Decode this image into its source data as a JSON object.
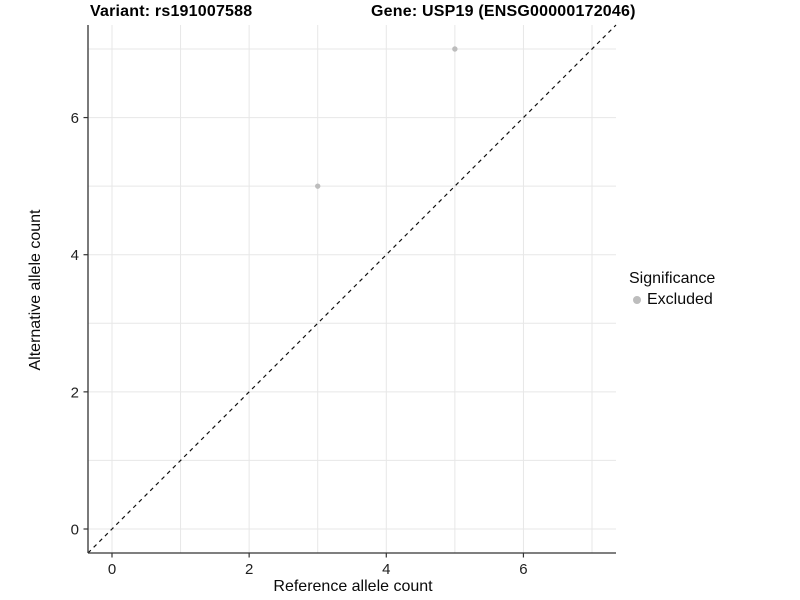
{
  "titles": {
    "variant": "Variant: rs191007588",
    "gene": "Gene: USP19 (ENSG00000172046)"
  },
  "legend": {
    "title": "Significance",
    "position": "right",
    "items": [
      {
        "label": "Excluded",
        "color": "#bdbdbd"
      }
    ]
  },
  "chart_data": {
    "type": "scatter",
    "title": "Variant: rs191007588 | Gene: USP19 (ENSG00000172046)",
    "xlabel": "Reference allele count",
    "ylabel": "Alternative allele count",
    "xlim": [
      -0.35,
      7.35
    ],
    "ylim": [
      -0.35,
      7.35
    ],
    "x_ticks": [
      0,
      2,
      4,
      6
    ],
    "y_ticks": [
      0,
      2,
      4,
      6
    ],
    "grid": true,
    "gridline_positions": [
      0,
      1,
      2,
      3,
      4,
      5,
      6,
      7
    ],
    "legend_position": "right",
    "series": [
      {
        "name": "Excluded",
        "color": "#bdbdbd",
        "point_radius": 2.7,
        "points": [
          {
            "x": 3,
            "y": 5
          },
          {
            "x": 5,
            "y": 7
          }
        ]
      }
    ],
    "reference_line": {
      "name": "identity-line",
      "style": "dashed",
      "color": "#111111",
      "from": [
        -0.35,
        -0.35
      ],
      "to": [
        7.35,
        7.35
      ]
    }
  },
  "style_colors": {
    "grid": "#e7e7e7",
    "axis_line": "#333333",
    "tick": "#333333",
    "tick_label": "#1f1f1f",
    "background": "#ffffff"
  }
}
